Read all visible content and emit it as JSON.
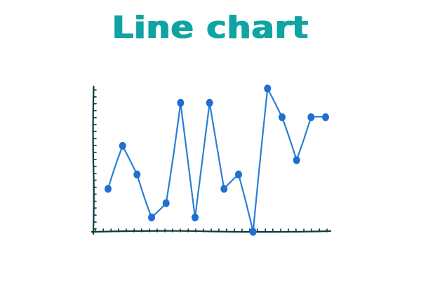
{
  "colors": {
    "title": "#0fa3a3",
    "line": "#2a7fd4",
    "marker": "#1f6fd0",
    "axis": "#0b3b3b"
  },
  "chart_data": {
    "type": "line",
    "title": "Line chart",
    "style": "hand-drawn (xkcd)",
    "xlabel": "",
    "ylabel": "",
    "xlim": [
      0,
      15
    ],
    "ylim": [
      0,
      10
    ],
    "axes_visible": [
      "left",
      "bottom"
    ],
    "tick_labels_visible": false,
    "grid": false,
    "legend": "none",
    "series": [
      {
        "x": [
          0,
          1,
          2,
          3,
          4,
          5,
          6,
          7,
          8,
          9,
          10,
          11,
          12,
          13,
          14,
          15
        ],
        "values": [
          3,
          6,
          4,
          1,
          2,
          9,
          1,
          9,
          3,
          4,
          0,
          10,
          8,
          5,
          8,
          8
        ],
        "marker": "circle"
      }
    ]
  }
}
